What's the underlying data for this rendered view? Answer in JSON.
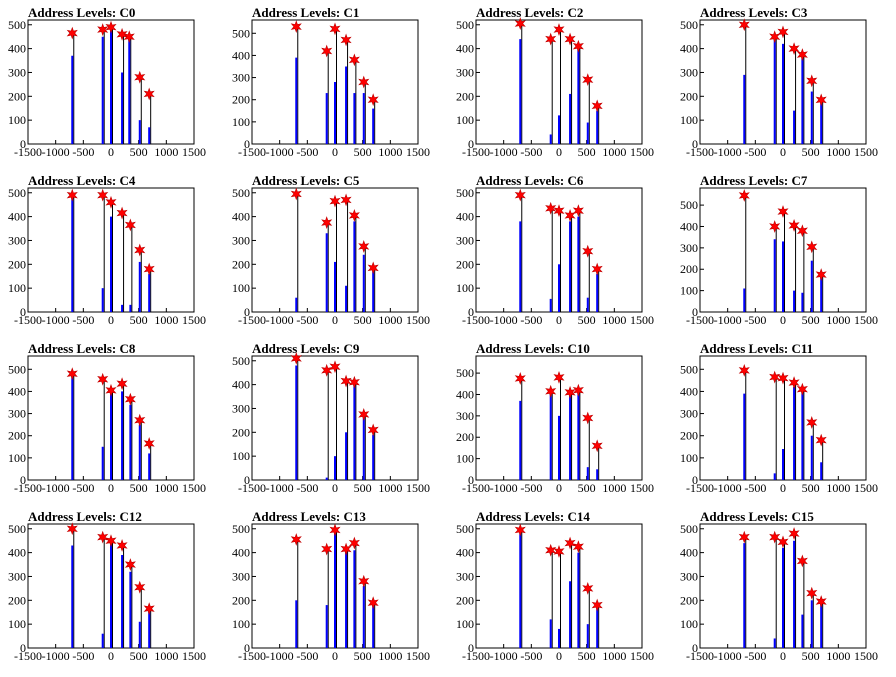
{
  "chart_data": [
    {
      "type": "bar",
      "title": "Address Levels: C0",
      "xlim": [
        -1500,
        1500
      ],
      "ylim": [
        0,
        520
      ],
      "xticks": [
        -1500,
        -1000,
        -500,
        0,
        500,
        1000,
        1500
      ],
      "yticks": [
        0,
        100,
        200,
        300,
        400,
        500
      ],
      "stars": {
        "x": [
          -700,
          -150,
          0,
          200,
          330,
          520,
          690
        ],
        "y": [
          465,
          480,
          490,
          460,
          450,
          280,
          210
        ]
      },
      "spikes": [
        {
          "x": -700,
          "y": 370
        },
        {
          "x": -150,
          "y": 450
        },
        {
          "x": 0,
          "y": 500
        },
        {
          "x": 200,
          "y": 300
        },
        {
          "x": 330,
          "y": 450
        },
        {
          "x": 520,
          "y": 100
        },
        {
          "x": 690,
          "y": 70
        }
      ]
    },
    {
      "type": "bar",
      "title": "Address Levels: C1",
      "xlim": [
        -1500,
        1500
      ],
      "ylim": [
        0,
        560
      ],
      "xticks": [
        -1500,
        -1000,
        -500,
        0,
        500,
        1000,
        1500
      ],
      "yticks": [
        0,
        100,
        200,
        300,
        400,
        500
      ],
      "stars": {
        "x": [
          -700,
          -150,
          0,
          200,
          350,
          520,
          690
        ],
        "y": [
          530,
          420,
          520,
          470,
          380,
          280,
          200
        ]
      },
      "spikes": [
        {
          "x": -700,
          "y": 390
        },
        {
          "x": -150,
          "y": 230
        },
        {
          "x": 0,
          "y": 280
        },
        {
          "x": 200,
          "y": 350
        },
        {
          "x": 350,
          "y": 230
        },
        {
          "x": 520,
          "y": 230
        },
        {
          "x": 690,
          "y": 160
        }
      ]
    },
    {
      "type": "bar",
      "title": "Address Levels: C2",
      "xlim": [
        -1500,
        1500
      ],
      "ylim": [
        0,
        520
      ],
      "xticks": [
        -1500,
        -1000,
        -500,
        0,
        500,
        1000,
        1500
      ],
      "yticks": [
        0,
        100,
        200,
        300,
        400,
        500
      ],
      "stars": {
        "x": [
          -700,
          -150,
          0,
          200,
          350,
          520,
          690
        ],
        "y": [
          505,
          440,
          480,
          440,
          410,
          270,
          160
        ]
      },
      "spikes": [
        {
          "x": -700,
          "y": 440
        },
        {
          "x": -150,
          "y": 40
        },
        {
          "x": 0,
          "y": 120
        },
        {
          "x": 200,
          "y": 210
        },
        {
          "x": 350,
          "y": 400
        },
        {
          "x": 520,
          "y": 90
        },
        {
          "x": 690,
          "y": 140
        }
      ]
    },
    {
      "type": "bar",
      "title": "Address Levels: C3",
      "xlim": [
        -1500,
        1500
      ],
      "ylim": [
        0,
        520
      ],
      "xticks": [
        -1500,
        -1000,
        -500,
        0,
        500,
        1000,
        1500
      ],
      "yticks": [
        0,
        100,
        200,
        300,
        400,
        500
      ],
      "stars": {
        "x": [
          -700,
          -150,
          0,
          200,
          350,
          520,
          690
        ],
        "y": [
          500,
          450,
          470,
          400,
          375,
          265,
          185
        ]
      },
      "spikes": [
        {
          "x": -700,
          "y": 290
        },
        {
          "x": -150,
          "y": 440
        },
        {
          "x": 0,
          "y": 420
        },
        {
          "x": 200,
          "y": 140
        },
        {
          "x": 350,
          "y": 360
        },
        {
          "x": 520,
          "y": 220
        },
        {
          "x": 690,
          "y": 170
        }
      ]
    },
    {
      "type": "bar",
      "title": "Address Levels: C4",
      "xlim": [
        -1500,
        1500
      ],
      "ylim": [
        0,
        520
      ],
      "xticks": [
        -1500,
        -1000,
        -500,
        0,
        500,
        1000,
        1500
      ],
      "yticks": [
        0,
        100,
        200,
        300,
        400,
        500
      ],
      "stars": {
        "x": [
          -700,
          -150,
          0,
          200,
          350,
          520,
          690
        ],
        "y": [
          490,
          490,
          460,
          415,
          365,
          260,
          180
        ]
      },
      "spikes": [
        {
          "x": -700,
          "y": 480
        },
        {
          "x": -150,
          "y": 100
        },
        {
          "x": 0,
          "y": 400
        },
        {
          "x": 200,
          "y": 30
        },
        {
          "x": 350,
          "y": 30
        },
        {
          "x": 520,
          "y": 210
        },
        {
          "x": 690,
          "y": 160
        }
      ]
    },
    {
      "type": "bar",
      "title": "Address Levels: C5",
      "xlim": [
        -1500,
        1500
      ],
      "ylim": [
        0,
        520
      ],
      "xticks": [
        -1500,
        -1000,
        -500,
        0,
        500,
        1000,
        1500
      ],
      "yticks": [
        0,
        100,
        200,
        300,
        400,
        500
      ],
      "stars": {
        "x": [
          -700,
          -150,
          0,
          200,
          350,
          520,
          690
        ],
        "y": [
          495,
          375,
          465,
          470,
          405,
          275,
          185
        ]
      },
      "spikes": [
        {
          "x": -700,
          "y": 60
        },
        {
          "x": -150,
          "y": 330
        },
        {
          "x": 0,
          "y": 210
        },
        {
          "x": 200,
          "y": 110
        },
        {
          "x": 350,
          "y": 380
        },
        {
          "x": 520,
          "y": 240
        },
        {
          "x": 690,
          "y": 170
        }
      ]
    },
    {
      "type": "bar",
      "title": "Address Levels: C6",
      "xlim": [
        -1500,
        1500
      ],
      "ylim": [
        0,
        520
      ],
      "xticks": [
        -1500,
        -1000,
        -500,
        0,
        500,
        1000,
        1500
      ],
      "yticks": [
        0,
        100,
        200,
        300,
        400,
        500
      ],
      "stars": {
        "x": [
          -700,
          -150,
          0,
          200,
          350,
          520,
          690
        ],
        "y": [
          490,
          435,
          425,
          405,
          425,
          255,
          180
        ]
      },
      "spikes": [
        {
          "x": -700,
          "y": 380
        },
        {
          "x": -150,
          "y": 55
        },
        {
          "x": 0,
          "y": 200
        },
        {
          "x": 200,
          "y": 380
        },
        {
          "x": 350,
          "y": 400
        },
        {
          "x": 520,
          "y": 60
        },
        {
          "x": 690,
          "y": 160
        }
      ]
    },
    {
      "type": "bar",
      "title": "Address Levels: C7",
      "xlim": [
        -1500,
        1500
      ],
      "ylim": [
        0,
        580
      ],
      "xticks": [
        -1500,
        -1000,
        -500,
        0,
        500,
        1000,
        1500
      ],
      "yticks": [
        0,
        100,
        200,
        300,
        400,
        500
      ],
      "stars": {
        "x": [
          -700,
          -150,
          0,
          200,
          350,
          520,
          690
        ],
        "y": [
          545,
          400,
          470,
          405,
          380,
          305,
          175
        ]
      },
      "spikes": [
        {
          "x": -700,
          "y": 110
        },
        {
          "x": -150,
          "y": 340
        },
        {
          "x": 0,
          "y": 330
        },
        {
          "x": 200,
          "y": 100
        },
        {
          "x": 350,
          "y": 90
        },
        {
          "x": 520,
          "y": 240
        },
        {
          "x": 690,
          "y": 160
        }
      ]
    },
    {
      "type": "bar",
      "title": "Address Levels: C8",
      "xlim": [
        -1500,
        1500
      ],
      "ylim": [
        0,
        560
      ],
      "xticks": [
        -1500,
        -1000,
        -500,
        0,
        500,
        1000,
        1500
      ],
      "yticks": [
        0,
        100,
        200,
        300,
        400,
        500
      ],
      "stars": {
        "x": [
          -700,
          -150,
          0,
          200,
          350,
          520,
          690
        ],
        "y": [
          480,
          455,
          405,
          435,
          365,
          270,
          165
        ]
      },
      "spikes": [
        {
          "x": -700,
          "y": 470
        },
        {
          "x": -150,
          "y": 150
        },
        {
          "x": 0,
          "y": 400
        },
        {
          "x": 200,
          "y": 400
        },
        {
          "x": 350,
          "y": 340
        },
        {
          "x": 520,
          "y": 250
        },
        {
          "x": 690,
          "y": 120
        }
      ]
    },
    {
      "type": "bar",
      "title": "Address Levels: C9",
      "xlim": [
        -1500,
        1500
      ],
      "ylim": [
        0,
        520
      ],
      "xticks": [
        -1500,
        -1000,
        -500,
        0,
        500,
        1000,
        1500
      ],
      "yticks": [
        0,
        100,
        200,
        300,
        400,
        500
      ],
      "stars": {
        "x": [
          -700,
          -150,
          0,
          200,
          350,
          520,
          690
        ],
        "y": [
          510,
          460,
          475,
          415,
          410,
          275,
          210
        ]
      },
      "spikes": [
        {
          "x": -700,
          "y": 480
        },
        {
          "x": -150,
          "y": 10
        },
        {
          "x": 0,
          "y": 100
        },
        {
          "x": 200,
          "y": 200
        },
        {
          "x": 350,
          "y": 400
        },
        {
          "x": 520,
          "y": 270
        },
        {
          "x": 690,
          "y": 190
        }
      ]
    },
    {
      "type": "bar",
      "title": "Address Levels: C10",
      "xlim": [
        -1500,
        1500
      ],
      "ylim": [
        0,
        580
      ],
      "xticks": [
        -1500,
        -1000,
        -500,
        0,
        500,
        1000,
        1500
      ],
      "yticks": [
        0,
        100,
        200,
        300,
        400,
        500
      ],
      "stars": {
        "x": [
          -700,
          -150,
          0,
          200,
          350,
          520,
          690
        ],
        "y": [
          475,
          415,
          480,
          410,
          420,
          290,
          160
        ]
      },
      "spikes": [
        {
          "x": -700,
          "y": 370
        },
        {
          "x": -150,
          "y": 400
        },
        {
          "x": 0,
          "y": 300
        },
        {
          "x": 200,
          "y": 400
        },
        {
          "x": 350,
          "y": 410
        },
        {
          "x": 520,
          "y": 60
        },
        {
          "x": 690,
          "y": 50
        }
      ]
    },
    {
      "type": "bar",
      "title": "Address Levels: C11",
      "xlim": [
        -1500,
        1500
      ],
      "ylim": [
        0,
        560
      ],
      "xticks": [
        -1500,
        -1000,
        -500,
        0,
        500,
        1000,
        1500
      ],
      "yticks": [
        0,
        100,
        200,
        300,
        400,
        500
      ],
      "stars": {
        "x": [
          -700,
          -150,
          0,
          200,
          350,
          520,
          690
        ],
        "y": [
          495,
          465,
          460,
          440,
          410,
          260,
          180
        ]
      },
      "spikes": [
        {
          "x": -700,
          "y": 390
        },
        {
          "x": -150,
          "y": 30
        },
        {
          "x": 0,
          "y": 140
        },
        {
          "x": 200,
          "y": 420
        },
        {
          "x": 350,
          "y": 400
        },
        {
          "x": 520,
          "y": 200
        },
        {
          "x": 690,
          "y": 80
        }
      ]
    },
    {
      "type": "bar",
      "title": "Address Levels: C12",
      "xlim": [
        -1500,
        1500
      ],
      "ylim": [
        0,
        520
      ],
      "xticks": [
        -1500,
        -1000,
        -500,
        0,
        500,
        1000,
        1500
      ],
      "yticks": [
        0,
        100,
        200,
        300,
        400,
        500
      ],
      "stars": {
        "x": [
          -700,
          -150,
          0,
          200,
          350,
          520,
          690
        ],
        "y": [
          500,
          465,
          450,
          430,
          350,
          255,
          165
        ]
      },
      "spikes": [
        {
          "x": -700,
          "y": 430
        },
        {
          "x": -150,
          "y": 60
        },
        {
          "x": 0,
          "y": 440
        },
        {
          "x": 200,
          "y": 390
        },
        {
          "x": 350,
          "y": 320
        },
        {
          "x": 520,
          "y": 110
        },
        {
          "x": 690,
          "y": 160
        }
      ]
    },
    {
      "type": "bar",
      "title": "Address Levels: C13",
      "xlim": [
        -1500,
        1500
      ],
      "ylim": [
        0,
        520
      ],
      "xticks": [
        -1500,
        -1000,
        -500,
        0,
        500,
        1000,
        1500
      ],
      "yticks": [
        0,
        100,
        200,
        300,
        400,
        500
      ],
      "stars": {
        "x": [
          -700,
          -150,
          0,
          200,
          350,
          520,
          690
        ],
        "y": [
          455,
          415,
          495,
          415,
          440,
          280,
          190
        ]
      },
      "spikes": [
        {
          "x": -700,
          "y": 200
        },
        {
          "x": -150,
          "y": 180
        },
        {
          "x": 0,
          "y": 500
        },
        {
          "x": 200,
          "y": 400
        },
        {
          "x": 350,
          "y": 410
        },
        {
          "x": 520,
          "y": 260
        },
        {
          "x": 690,
          "y": 180
        }
      ]
    },
    {
      "type": "bar",
      "title": "Address Levels: C14",
      "xlim": [
        -1500,
        1500
      ],
      "ylim": [
        0,
        520
      ],
      "xticks": [
        -1500,
        -1000,
        -500,
        0,
        500,
        1000,
        1500
      ],
      "yticks": [
        0,
        100,
        200,
        300,
        400,
        500
      ],
      "stars": {
        "x": [
          -700,
          -150,
          0,
          200,
          350,
          520,
          690
        ],
        "y": [
          495,
          410,
          405,
          440,
          425,
          250,
          180
        ]
      },
      "spikes": [
        {
          "x": -700,
          "y": 480
        },
        {
          "x": -150,
          "y": 120
        },
        {
          "x": 0,
          "y": 80
        },
        {
          "x": 200,
          "y": 280
        },
        {
          "x": 350,
          "y": 400
        },
        {
          "x": 520,
          "y": 100
        },
        {
          "x": 690,
          "y": 170
        }
      ]
    },
    {
      "type": "bar",
      "title": "Address Levels: C15",
      "xlim": [
        -1500,
        1500
      ],
      "ylim": [
        0,
        520
      ],
      "xticks": [
        -1500,
        -1000,
        -500,
        0,
        500,
        1000,
        1500
      ],
      "yticks": [
        0,
        100,
        200,
        300,
        400,
        500
      ],
      "stars": {
        "x": [
          -700,
          -150,
          0,
          200,
          350,
          520,
          690
        ],
        "y": [
          465,
          465,
          445,
          480,
          365,
          230,
          195
        ]
      },
      "spikes": [
        {
          "x": -700,
          "y": 440
        },
        {
          "x": -150,
          "y": 40
        },
        {
          "x": 0,
          "y": 420
        },
        {
          "x": 200,
          "y": 450
        },
        {
          "x": 350,
          "y": 140
        },
        {
          "x": 520,
          "y": 200
        },
        {
          "x": 690,
          "y": 190
        }
      ]
    }
  ],
  "colors": {
    "star_fill": "#ff0000",
    "star_stroke": "#c00000",
    "spike": "#0000ff",
    "axis": "#000000",
    "background": "#ffffff"
  }
}
